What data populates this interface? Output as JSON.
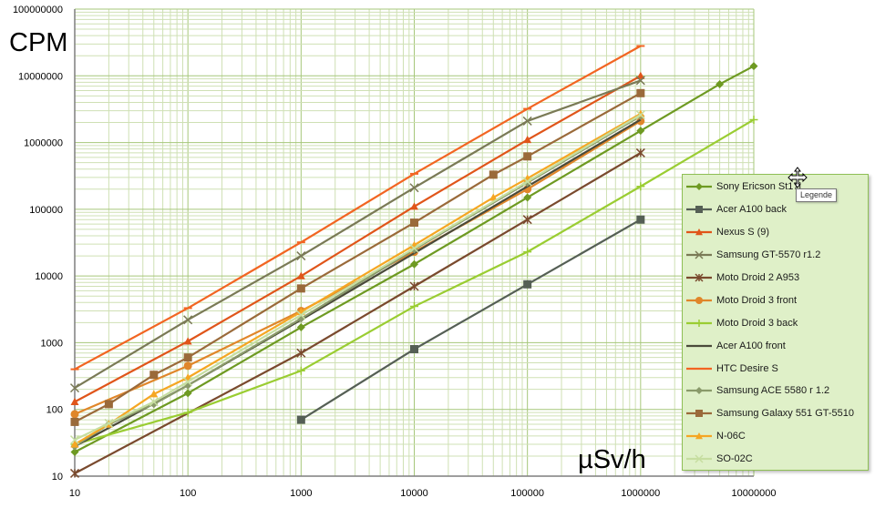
{
  "chart_data": {
    "type": "line",
    "title": "",
    "xlabel": "µSv/h",
    "ylabel": "CPM",
    "xscale": "log",
    "yscale": "log",
    "xlim": [
      10,
      10000000
    ],
    "ylim": [
      10,
      100000000
    ],
    "grid": true,
    "legend_position": "right",
    "x_tick_labels": [
      "10",
      "100",
      "1000",
      "10000",
      "100000",
      "1000000",
      "10000000"
    ],
    "y_tick_labels": [
      "10",
      "100",
      "1000",
      "10000",
      "100000",
      "1000000",
      "10000000",
      "100000000"
    ],
    "series": [
      {
        "name": "Sony Ericson St17i",
        "color": "#6e9a22",
        "marker": "diamond",
        "x": [
          10,
          100,
          1000,
          10000,
          100000,
          1000000,
          5000000,
          10000000
        ],
        "y": [
          23,
          175,
          1700,
          15000,
          150000,
          1500000,
          7500000,
          14000000
        ]
      },
      {
        "name": "Acer A100 back",
        "color": "#555f55",
        "marker": "square",
        "x": [
          1000,
          10000,
          100000,
          1000000
        ],
        "y": [
          70,
          800,
          7500,
          70000
        ]
      },
      {
        "name": "Nexus S (9)",
        "color": "#e0551a",
        "marker": "triangle",
        "x": [
          10,
          100,
          1000,
          10000,
          100000,
          1000000
        ],
        "y": [
          130,
          1050,
          10000,
          110000,
          1100000,
          10000000
        ]
      },
      {
        "name": "Samsung GT-5570 r1.2",
        "color": "#7a7a56",
        "marker": "x",
        "x": [
          10,
          100,
          1000,
          10000,
          100000,
          1000000
        ],
        "y": [
          210,
          2200,
          20000,
          210000,
          2100000,
          8500000
        ]
      },
      {
        "name": "Moto Droid 2 A953",
        "color": "#7a4a2e",
        "marker": "star",
        "x": [
          10,
          1000,
          10000,
          100000,
          1000000
        ],
        "y": [
          11,
          700,
          7000,
          70000,
          700000
        ]
      },
      {
        "name": "Moto Droid 3 front",
        "color": "#e0862a",
        "marker": "circle",
        "x": [
          10,
          100,
          1000,
          10000,
          100000,
          1000000
        ],
        "y": [
          85,
          450,
          3000,
          23000,
          200000,
          2100000
        ]
      },
      {
        "name": "Moto Droid 3 back",
        "color": "#9acd32",
        "marker": "plus",
        "x": [
          10,
          100,
          1000,
          10000,
          100000,
          1000000,
          10000000
        ],
        "y": [
          30,
          90,
          380,
          3500,
          23000,
          220000,
          2200000
        ]
      },
      {
        "name": "Acer A100 front",
        "color": "#4a4a3a",
        "marker": "none",
        "x": [
          10,
          100,
          1000,
          10000,
          100000,
          1000000
        ],
        "y": [
          28,
          230,
          2200,
          22000,
          220000,
          2200000
        ]
      },
      {
        "name": "HTC Desire S",
        "color": "#f26522",
        "marker": "dash",
        "x": [
          10,
          100,
          1000,
          10000,
          100000,
          1000000
        ],
        "y": [
          400,
          3300,
          32000,
          340000,
          3200000,
          28000000
        ]
      },
      {
        "name": "Samsung ACE 5580 r 1.2",
        "color": "#8a9a6a",
        "marker": "diamond",
        "x": [
          10,
          20,
          50,
          100,
          1000,
          10000,
          100000,
          1000000
        ],
        "y": [
          28,
          60,
          120,
          230,
          2300,
          25000,
          250000,
          2500000
        ]
      },
      {
        "name": "Samsung Galaxy 551 GT-5510",
        "color": "#9a6a3a",
        "marker": "square",
        "x": [
          10,
          20,
          50,
          100,
          1000,
          10000,
          50000,
          100000,
          1000000
        ],
        "y": [
          65,
          120,
          330,
          600,
          6500,
          63000,
          330000,
          620000,
          5500000
        ]
      },
      {
        "name": "N-06C",
        "color": "#f5a623",
        "marker": "triangle",
        "x": [
          10,
          20,
          50,
          100,
          1000,
          10000,
          50000,
          100000,
          1000000
        ],
        "y": [
          30,
          60,
          170,
          300,
          2900,
          29000,
          150000,
          290000,
          2700000
        ]
      },
      {
        "name": "SO-02C",
        "color": "#c6dea0",
        "marker": "x",
        "x": [
          10,
          20,
          50,
          100,
          1000,
          10000,
          100000,
          1000000
        ],
        "y": [
          35,
          62,
          130,
          260,
          2600,
          26000,
          260000,
          2600000
        ]
      }
    ]
  },
  "tooltip_text": "Legende",
  "icons": {
    "cursor": "move-cursor-icon"
  }
}
